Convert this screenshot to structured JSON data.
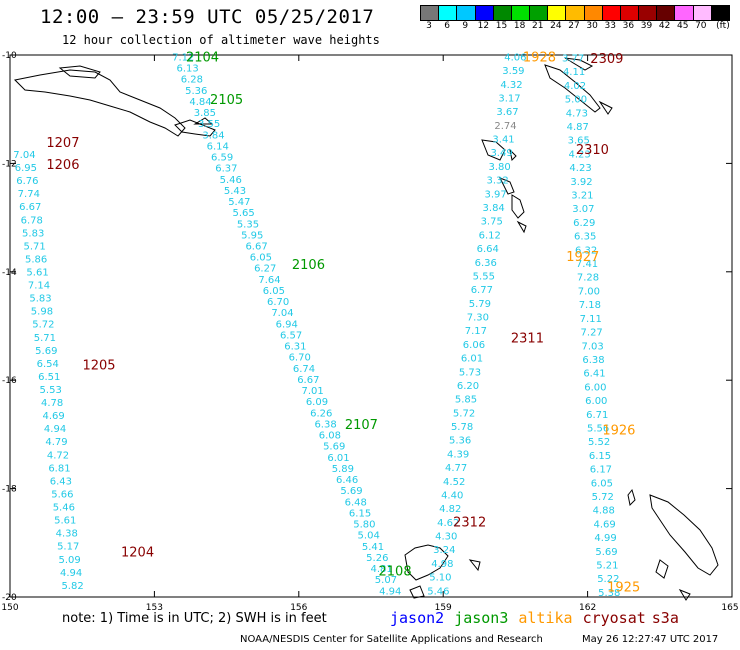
{
  "header": {
    "title": "12:00 — 23:59 UTC 05/25/2017",
    "subtitle": "12 hour collection of altimeter wave heights"
  },
  "colorbar": {
    "colors": [
      "#777777",
      "#00ffff",
      "#00c8ff",
      "#0000ff",
      "#008800",
      "#00e000",
      "#00a000",
      "#ffff00",
      "#ffbb00",
      "#ff8800",
      "#ff0000",
      "#dd0000",
      "#990000",
      "#660000",
      "#ff66ff",
      "#ffbbff",
      "#000000"
    ],
    "labels": [
      "3",
      "6",
      "9",
      "12",
      "15",
      "18",
      "21",
      "24",
      "27",
      "30",
      "33",
      "36",
      "39",
      "42",
      "45",
      "70",
      "(ft)"
    ]
  },
  "axes": {
    "lon_ticks": [
      "150",
      "153",
      "156",
      "159",
      "162",
      "165"
    ],
    "lat_ticks": [
      "-10",
      "-12",
      "-14",
      "-16",
      "-18",
      "-20"
    ],
    "lon_range": [
      150,
      165
    ],
    "lat_range": [
      -20,
      -10
    ]
  },
  "satellites": [
    {
      "name": "jason2",
      "color": "#0000ff"
    },
    {
      "name": "jason3",
      "color": "#009900"
    },
    {
      "name": "altika",
      "color": "#ff9900"
    },
    {
      "name": "cryosat",
      "color": "#880000"
    },
    {
      "name": "s3a",
      "color": "#880000"
    }
  ],
  "track_labels": [
    {
      "text": "2104",
      "color": "#009900",
      "lon": 154.0,
      "lat": -10.12
    },
    {
      "text": "2105",
      "color": "#009900",
      "lon": 154.5,
      "lat": -10.9
    },
    {
      "text": "2106",
      "color": "#009900",
      "lon": 156.2,
      "lat": -13.95
    },
    {
      "text": "2107",
      "color": "#009900",
      "lon": 157.3,
      "lat": -16.9
    },
    {
      "text": "2108",
      "color": "#009900",
      "lon": 158.0,
      "lat": -19.6
    },
    {
      "text": "1207",
      "color": "#880000",
      "lon": 151.1,
      "lat": -11.7
    },
    {
      "text": "1206",
      "color": "#880000",
      "lon": 151.1,
      "lat": -12.1
    },
    {
      "text": "1205",
      "color": "#880000",
      "lon": 151.85,
      "lat": -15.8
    },
    {
      "text": "1204",
      "color": "#880000",
      "lon": 152.65,
      "lat": -19.25
    },
    {
      "text": "1928",
      "color": "#ff9900",
      "lon": 161.0,
      "lat": -10.12
    },
    {
      "text": "2309",
      "color": "#880000",
      "lon": 162.4,
      "lat": -10.15
    },
    {
      "text": "2310",
      "color": "#880000",
      "lon": 162.1,
      "lat": -11.83
    },
    {
      "text": "1927",
      "color": "#ff9900",
      "lon": 161.9,
      "lat": -13.8
    },
    {
      "text": "2311",
      "color": "#880000",
      "lon": 160.75,
      "lat": -15.3
    },
    {
      "text": "1926",
      "color": "#ff9900",
      "lon": 162.65,
      "lat": -17.0
    },
    {
      "text": "2312",
      "color": "#880000",
      "lon": 159.55,
      "lat": -18.7
    },
    {
      "text": "1925",
      "color": "#ff9900",
      "lon": 162.75,
      "lat": -19.9
    }
  ],
  "tracks": [
    {
      "id": "s3a-far-west",
      "lon_start": 150.3,
      "lat_start": -11.9,
      "lon_end": 151.3,
      "lat_end": -19.85,
      "values": [
        "7.04",
        "6.95",
        "6.76",
        "7.74",
        "6.67",
        "6.78",
        "5.83",
        "5.71",
        "5.86",
        "5.61",
        "7.14",
        "5.83",
        "5.98",
        "5.72",
        "5.71",
        "5.69",
        "6.54",
        "6.51",
        "5.53",
        "4.78",
        "4.69",
        "4.94",
        "4.79",
        "4.72",
        "6.81",
        "6.43",
        "5.66",
        "5.46",
        "5.61",
        "4.38",
        "5.17",
        "5.09",
        "4.94",
        "5.82"
      ]
    },
    {
      "id": "jason3-center",
      "lon_start": 153.6,
      "lat_start": -10.1,
      "lon_end": 157.9,
      "lat_end": -19.95,
      "values": [
        "7.12",
        "6.13",
        "6.28",
        "5.36",
        "4.84",
        "3.85",
        "3.55",
        "3.84",
        "6.14",
        "6.59",
        "6.37",
        "5.46",
        "5.43",
        "5.47",
        "5.65",
        "5.35",
        "5.95",
        "6.67",
        "6.05",
        "6.27",
        "7.64",
        "6.05",
        "6.70",
        "7.04",
        "6.94",
        "6.57",
        "6.31",
        "6.70",
        "6.74",
        "6.67",
        "7.01",
        "6.09",
        "6.26",
        "6.38",
        "6.08",
        "5.69",
        "6.01",
        "5.89",
        "6.46",
        "5.69",
        "6.48",
        "6.15",
        "5.80",
        "5.04",
        "5.41",
        "5.26",
        "4.81",
        "5.07",
        "4.94"
      ]
    },
    {
      "id": "cryosat-east-descending",
      "lon_start": 160.5,
      "lat_start": -10.1,
      "lon_end": 158.9,
      "lat_end": -19.95,
      "values": [
        "4.06",
        "3.59",
        "4.32",
        "3.17",
        "3.67",
        "2.74",
        "3.41",
        "3.49",
        "3.80",
        "3.32",
        "3.97",
        "3.84",
        "3.75",
        "6.12",
        "6.64",
        "6.36",
        "5.55",
        "6.77",
        "5.79",
        "7.30",
        "7.17",
        "6.06",
        "6.01",
        "5.73",
        "6.20",
        "5.85",
        "5.72",
        "5.78",
        "5.36",
        "4.39",
        "4.77",
        "4.52",
        "4.40",
        "4.82",
        "4.62",
        "4.30",
        "3.24",
        "4.98",
        "5.10",
        "5.46"
      ]
    },
    {
      "id": "altika-east",
      "lon_start": 161.7,
      "lat_start": -10.12,
      "lon_end": 162.45,
      "lat_end": -19.98,
      "values": [
        "3.77",
        "4.11",
        "4.02",
        "5.00",
        "4.73",
        "4.87",
        "3.65",
        "4.23",
        "4.23",
        "3.92",
        "3.21",
        "3.07",
        "6.29",
        "6.35",
        "6.32",
        "7.41",
        "7.28",
        "7.00",
        "7.18",
        "7.11",
        "7.27",
        "7.03",
        "6.38",
        "6.41",
        "6.00",
        "6.00",
        "6.71",
        "5.56",
        "5.52",
        "6.15",
        "6.17",
        "6.05",
        "5.72",
        "4.88",
        "4.69",
        "4.99",
        "5.69",
        "5.21",
        "5.22",
        "5.38"
      ]
    }
  ],
  "footer": {
    "note": "note: 1) Time is in UTC; 2) SWH is in feet",
    "credit": "NOAA/NESDIS Center for Satellite Applications and Research",
    "timestamp": "May 26 12:27:47 UTC 2017"
  }
}
